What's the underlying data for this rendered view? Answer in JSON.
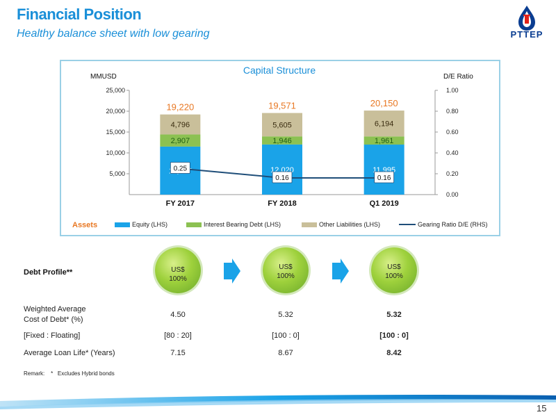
{
  "header": {
    "title": "Financial Position",
    "subtitle": "Healthy balance sheet with low gearing",
    "logo_text": "PTTEP"
  },
  "chart_data": {
    "type": "bar",
    "title": "Capital Structure",
    "ylabel": "MMUSD",
    "y2label": "D/E Ratio",
    "ylim": [
      0,
      25000
    ],
    "y2lim": [
      0,
      1.0
    ],
    "yticks": [
      "5,000",
      "10,000",
      "15,000",
      "20,000",
      "25,000"
    ],
    "y2ticks": [
      "0.00",
      "0.20",
      "0.40",
      "0.60",
      "0.80",
      "1.00"
    ],
    "categories": [
      "FY 2017",
      "FY 2018",
      "Q1 2019"
    ],
    "stacked": true,
    "series": [
      {
        "name": "Equity (LHS)",
        "color": "#1aa3e8",
        "values": [
          11517,
          12020,
          11995
        ],
        "labels": [
          "11,517",
          "12,020",
          "11,995"
        ]
      },
      {
        "name": "Interest Bearing Debt (LHS)",
        "color": "#8cc152",
        "values": [
          2907,
          1946,
          1961
        ],
        "labels": [
          "2,907",
          "1,946",
          "1,961"
        ]
      },
      {
        "name": "Other Liabilities (LHS)",
        "color": "#c9bf9a",
        "values": [
          4796,
          5605,
          6194
        ],
        "labels": [
          "4,796",
          "5,605",
          "6,194"
        ]
      }
    ],
    "totals": [
      "19,220",
      "19,571",
      "20,150"
    ],
    "line": {
      "name": "Gearing Ratio D/E (RHS)",
      "color": "#1f4e79",
      "values": [
        0.25,
        0.16,
        0.16
      ],
      "labels": [
        "0.25",
        "0.16",
        "0.16"
      ]
    },
    "assets_label": "Assets",
    "legend_position": "bottom"
  },
  "debt_profile": {
    "title": "Debt Profile**",
    "balls": [
      "US$\n100%",
      "US$\n100%",
      "US$\n100%"
    ],
    "rows": [
      {
        "label": "Weighted Average\nCost of Debt* (%)",
        "values": [
          "4.50",
          "5.32",
          "5.32"
        ]
      },
      {
        "label": "[Fixed : Floating]",
        "values": [
          "[80 : 20]",
          "[100 : 0]",
          "[100 : 0]"
        ]
      },
      {
        "label": "Average Loan Life* (Years)",
        "values": [
          "7.15",
          "8.67",
          "8.42"
        ]
      }
    ]
  },
  "remark": "Remark:    *   Excludes Hybrid bonds",
  "page_number": "15"
}
